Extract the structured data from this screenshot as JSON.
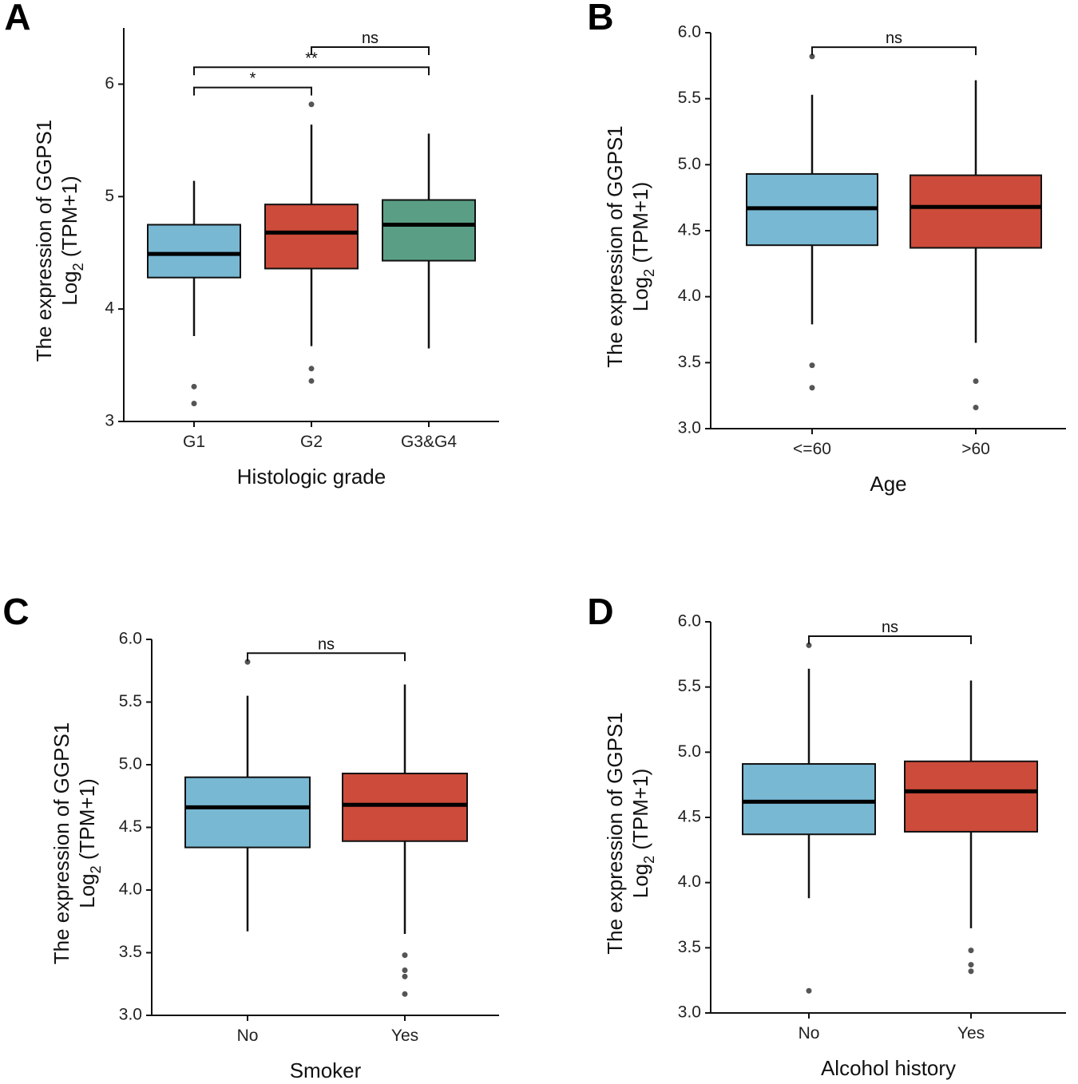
{
  "chart_data": [
    {
      "panel": "A",
      "type": "box",
      "ylabel_line1": "The expression of GGPS1",
      "ylabel_line2": "Log2 (TPM+1)",
      "xlabel": "Histologic grade",
      "ylim": [
        3,
        6.5
      ],
      "yticks": [
        "3",
        "4",
        "5",
        "6"
      ],
      "ytick_values": [
        3,
        4,
        5,
        6
      ],
      "categories": [
        "G1",
        "G2",
        "G3&G4"
      ],
      "colors": [
        "#78b8d3",
        "#cc4b3a",
        "#5a9f85"
      ],
      "boxes": [
        {
          "whisker_low": 3.76,
          "q1": 4.28,
          "median": 4.49,
          "q3": 4.75,
          "whisker_high": 5.14,
          "outliers": [
            3.31,
            3.16
          ]
        },
        {
          "whisker_low": 3.67,
          "q1": 4.36,
          "median": 4.68,
          "q3": 4.93,
          "whisker_high": 5.64,
          "outliers": [
            5.82,
            3.47,
            3.36
          ]
        },
        {
          "whisker_low": 3.65,
          "q1": 4.43,
          "median": 4.75,
          "q3": 4.97,
          "whisker_high": 5.56,
          "outliers": []
        }
      ],
      "comparisons": [
        {
          "from": 0,
          "to": 1,
          "label": "*",
          "level": 5.97
        },
        {
          "from": 0,
          "to": 2,
          "label": "**",
          "level": 6.15
        },
        {
          "from": 1,
          "to": 2,
          "label": "ns",
          "level": 6.33
        }
      ]
    },
    {
      "panel": "B",
      "type": "box",
      "ylabel_line1": "The expression of GGPS1",
      "ylabel_line2": "Log2 (TPM+1)",
      "xlabel": "Age",
      "ylim": [
        3,
        6
      ],
      "yticks": [
        "3.0",
        "3.5",
        "4.0",
        "4.5",
        "5.0",
        "5.5",
        "6.0"
      ],
      "ytick_values": [
        3,
        3.5,
        4,
        4.5,
        5,
        5.5,
        6
      ],
      "categories": [
        "<=60",
        ">60"
      ],
      "colors": [
        "#78b8d3",
        "#cc4b3a"
      ],
      "boxes": [
        {
          "whisker_low": 3.79,
          "q1": 4.39,
          "median": 4.67,
          "q3": 4.93,
          "whisker_high": 5.53,
          "outliers": [
            5.82,
            3.48,
            3.31
          ]
        },
        {
          "whisker_low": 3.65,
          "q1": 4.37,
          "median": 4.68,
          "q3": 4.92,
          "whisker_high": 5.64,
          "outliers": [
            3.36,
            3.16
          ]
        }
      ],
      "comparisons": [
        {
          "from": 0,
          "to": 1,
          "label": "ns",
          "level": 5.89
        }
      ]
    },
    {
      "panel": "C",
      "type": "box",
      "ylabel_line1": "The expression of GGPS1",
      "ylabel_line2": "Log2 (TPM+1)",
      "xlabel": "Smoker",
      "ylim": [
        3,
        6
      ],
      "yticks": [
        "3.0",
        "3.5",
        "4.0",
        "4.5",
        "5.0",
        "5.5",
        "6.0"
      ],
      "ytick_values": [
        3,
        3.5,
        4,
        4.5,
        5,
        5.5,
        6
      ],
      "categories": [
        "No",
        "Yes"
      ],
      "colors": [
        "#78b8d3",
        "#cc4b3a"
      ],
      "boxes": [
        {
          "whisker_low": 3.67,
          "q1": 4.34,
          "median": 4.66,
          "q3": 4.9,
          "whisker_high": 5.55,
          "outliers": [
            5.82
          ]
        },
        {
          "whisker_low": 3.65,
          "q1": 4.39,
          "median": 4.68,
          "q3": 4.93,
          "whisker_high": 5.64,
          "outliers": [
            3.48,
            3.36,
            3.31,
            3.17
          ]
        }
      ],
      "comparisons": [
        {
          "from": 0,
          "to": 1,
          "label": "ns",
          "level": 5.89
        }
      ]
    },
    {
      "panel": "D",
      "type": "box",
      "ylabel_line1": "The expression of GGPS1",
      "ylabel_line2": "Log2 (TPM+1)",
      "xlabel": "Alcohol history",
      "ylim": [
        3,
        6
      ],
      "yticks": [
        "3.0",
        "3.5",
        "4.0",
        "4.5",
        "5.0",
        "5.5",
        "6.0"
      ],
      "ytick_values": [
        3,
        3.5,
        4,
        4.5,
        5,
        5.5,
        6
      ],
      "categories": [
        "No",
        "Yes"
      ],
      "colors": [
        "#78b8d3",
        "#cc4b3a"
      ],
      "boxes": [
        {
          "whisker_low": 3.88,
          "q1": 4.37,
          "median": 4.62,
          "q3": 4.91,
          "whisker_high": 5.64,
          "outliers": [
            5.82,
            3.17
          ]
        },
        {
          "whisker_low": 3.65,
          "q1": 4.39,
          "median": 4.7,
          "q3": 4.93,
          "whisker_high": 5.55,
          "outliers": [
            3.48,
            3.37,
            3.32
          ]
        }
      ],
      "comparisons": [
        {
          "from": 0,
          "to": 1,
          "label": "ns",
          "level": 5.89
        }
      ]
    }
  ]
}
